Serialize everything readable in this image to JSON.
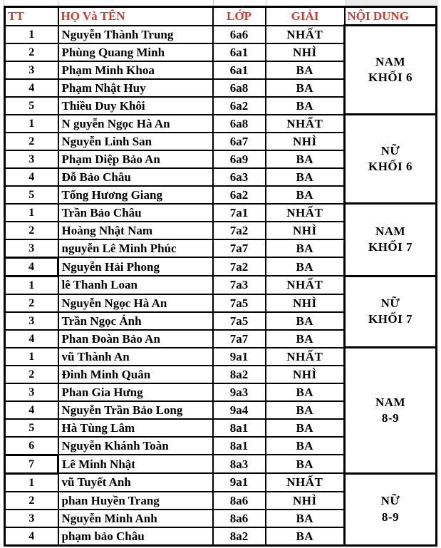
{
  "colors": {
    "header_text": "#d6352a",
    "cell_border": "#000000",
    "grid_light": "#c9c9c9",
    "sliver_fill": "#ededed"
  },
  "header": {
    "tt": "TT",
    "name": "HỌ Và TÊN",
    "class": "LỚP",
    "prize": "GIẢI",
    "category": "NỘI DUNG"
  },
  "groups": [
    {
      "label_lines": [
        "NAM",
        "KHỐI 6"
      ],
      "rows": [
        {
          "tt": "1",
          "name": "Nguyễn Thành Trung",
          "class": "6a6",
          "prize": "NHẤT",
          "selected": false
        },
        {
          "tt": "2",
          "name": "Phùng Quang Minh",
          "class": "6a1",
          "prize": "NHÌ",
          "selected": false
        },
        {
          "tt": "3",
          "name": "Phạm Minh Khoa",
          "class": "6a1",
          "prize": "BA",
          "selected": false
        },
        {
          "tt": "4",
          "name": "Phạm Nhật Huy",
          "class": "6a8",
          "prize": "BA",
          "selected": false
        },
        {
          "tt": "5",
          "name": "Thiều Duy Khôi",
          "class": "6a2",
          "prize": "BA",
          "selected": false
        }
      ]
    },
    {
      "label_lines": [
        "NỮ",
        "KHỐI 6"
      ],
      "rows": [
        {
          "tt": "1",
          "name": "N guyễn Ngọc Hà An",
          "class": "6a8",
          "prize": "NHẤT",
          "selected": false
        },
        {
          "tt": "2",
          "name": "Nguyễn Linh San",
          "class": "6a7",
          "prize": "NHÌ",
          "selected": false
        },
        {
          "tt": "3",
          "name": "Phạm Diệp Bảo An",
          "class": "6a9",
          "prize": "BA",
          "selected": false
        },
        {
          "tt": "4",
          "name": "Đỗ Bảo Châu",
          "class": "6a3",
          "prize": "BA",
          "selected": false
        },
        {
          "tt": "5",
          "name": "Tống Hương Giang",
          "class": "6a2",
          "prize": "BA",
          "selected": false
        }
      ]
    },
    {
      "label_lines": [
        "NAM",
        "KHỐI 7"
      ],
      "rows": [
        {
          "tt": "1",
          "name": "Trần Bảo Châu",
          "class": "7a1",
          "prize": "NHẤT",
          "selected": false
        },
        {
          "tt": "2",
          "name": "Hoàng Nhật Nam",
          "class": "7a2",
          "prize": "NHÌ",
          "selected": false
        },
        {
          "tt": "3",
          "name": "nguyễn Lê Minh Phúc",
          "class": "7a7",
          "prize": "BA",
          "selected": false
        },
        {
          "tt": "4",
          "name": "Nguyễn Hải Phong",
          "class": "7a2",
          "prize": "BA",
          "selected": true
        }
      ]
    },
    {
      "label_lines": [
        "NỮ",
        "KHỐI 7"
      ],
      "rows": [
        {
          "tt": "1",
          "name": "lê Thanh Loan",
          "class": "7a3",
          "prize": "NHẤT",
          "selected": false
        },
        {
          "tt": "2",
          "name": "Nguyễn Ngọc Hà An",
          "class": "7a5",
          "prize": "NHÌ",
          "selected": false
        },
        {
          "tt": "3",
          "name": "Trần Ngọc Ánh",
          "class": "7a5",
          "prize": "BA",
          "selected": false
        },
        {
          "tt": "4",
          "name": "Phan Đoàn Bảo An",
          "class": "7a7",
          "prize": "BA",
          "selected": false
        }
      ]
    },
    {
      "label_lines": [
        "NAM",
        "8-9"
      ],
      "rows": [
        {
          "tt": "1",
          "name": "vũ Thành An",
          "class": "9a1",
          "prize": "NHẤT",
          "selected": false
        },
        {
          "tt": "2",
          "name": "Đinh Minh Quân",
          "class": "8a2",
          "prize": "NHÌ",
          "selected": false
        },
        {
          "tt": "3",
          "name": "Phan Gia Hưng",
          "class": "9a3",
          "prize": "BA",
          "selected": false
        },
        {
          "tt": "4",
          "name": "Nguyễn Trần Bảo Long",
          "class": "9a4",
          "prize": "BA",
          "selected": false
        },
        {
          "tt": "5",
          "name": "Hà Tùng Lâm",
          "class": "8a1",
          "prize": "BA",
          "selected": false
        },
        {
          "tt": "6",
          "name": "Nguyễn Khánh Toàn",
          "class": "8a1",
          "prize": "BA",
          "selected": false
        },
        {
          "tt": "7",
          "name": "Lê Minh Nhật",
          "class": "8a3",
          "prize": "BA",
          "selected": true
        }
      ]
    },
    {
      "label_lines": [
        "NỮ",
        "8-9"
      ],
      "rows": [
        {
          "tt": "1",
          "name": "vũ Tuyết Anh",
          "class": "9a1",
          "prize": "NHẤT",
          "selected": false
        },
        {
          "tt": "2",
          "name": "phan Huyền Trang",
          "class": "8a6",
          "prize": "NHÌ",
          "selected": false
        },
        {
          "tt": "3",
          "name": "Nguyễn Minh Anh",
          "class": "8a6",
          "prize": "BA",
          "selected": false
        },
        {
          "tt": "4",
          "name": "phạm bảo Châu",
          "class": "8a2",
          "prize": "BA",
          "selected": false
        }
      ]
    }
  ]
}
